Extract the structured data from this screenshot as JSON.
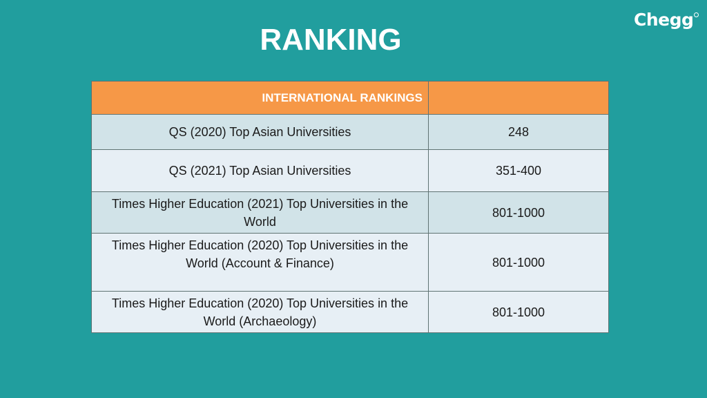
{
  "brand": {
    "logo_text": "Chegg",
    "logo_mark": "®"
  },
  "page": {
    "title": "RANKING"
  },
  "table": {
    "headers": [
      "INTERNATIONAL RANKINGS",
      ""
    ],
    "rows": [
      {
        "name": "QS (2020) Top Asian Universities",
        "rank": "248"
      },
      {
        "name": "QS (2021) Top Asian Universities",
        "rank": "351-400"
      },
      {
        "name": "Times Higher Education (2021) Top Universities in the World",
        "rank": "801-1000"
      },
      {
        "name": "Times Higher Education (2020) Top Universities in the World (Account & Finance)",
        "rank": "801-1000"
      },
      {
        "name": "Times Higher Education (2020) Top Universities in the World (Archaeology)",
        "rank": "801-1000"
      }
    ]
  },
  "colors": {
    "background": "#219e9e",
    "header": "#f69847",
    "row_dark": "#d1e3e8",
    "row_light": "#e7eff5"
  }
}
